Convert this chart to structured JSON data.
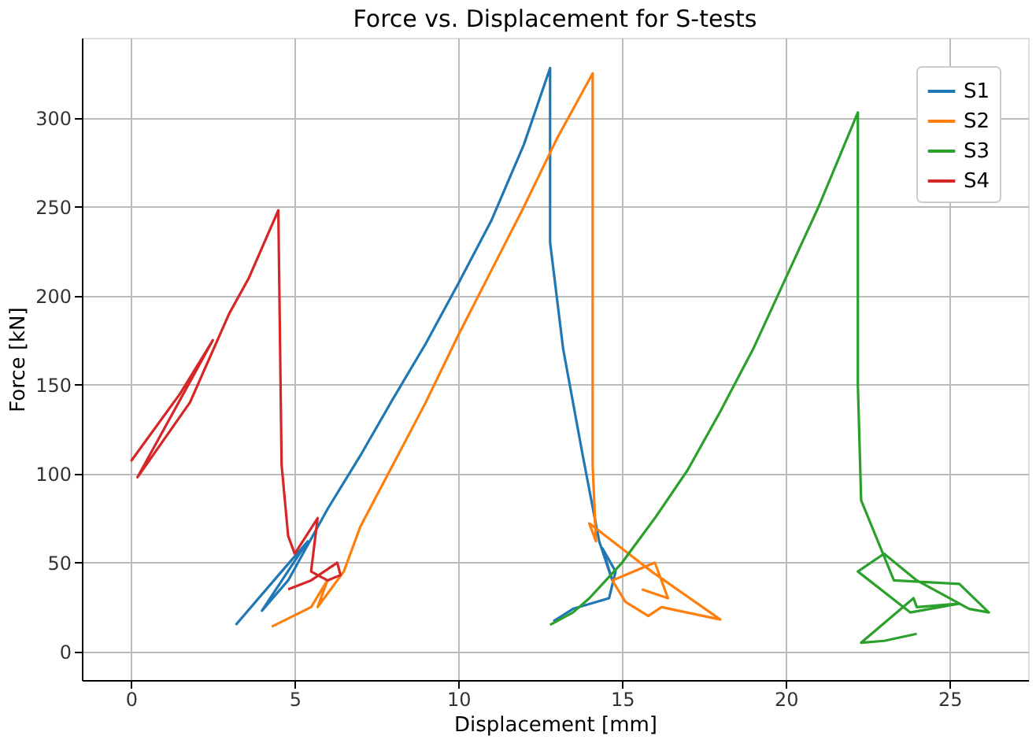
{
  "chart_data": {
    "type": "line",
    "title": "Force vs. Displacement for S-tests",
    "xlabel": "Displacement [mm]",
    "ylabel": "Force [kN]",
    "xlim": [
      -1.5,
      27.4
    ],
    "ylim": [
      -16,
      345
    ],
    "xticks": [
      0,
      5,
      10,
      15,
      20,
      25
    ],
    "yticks": [
      0,
      50,
      100,
      150,
      200,
      250,
      300
    ],
    "grid": true,
    "legend": "top right",
    "marker": "none",
    "line_style": "solid",
    "series": [
      {
        "name": "S1",
        "color": "#1f77b4",
        "x": [
          3.2,
          4.6,
          5.4,
          4.0,
          4.8,
          6.0,
          7.0,
          8.0,
          9.0,
          10.0,
          11.0,
          12.0,
          12.8,
          12.8,
          13.2,
          13.8,
          14.3,
          14.7,
          14.4,
          14.8,
          14.6,
          13.5,
          12.9
        ],
        "values": [
          15,
          45,
          62,
          23,
          40,
          80,
          110,
          142,
          173,
          207,
          242,
          285,
          328,
          230,
          170,
          110,
          62,
          40,
          58,
          45,
          30,
          24,
          17
        ]
      },
      {
        "name": "S2",
        "color": "#ff7f0e",
        "x": [
          4.3,
          5.5,
          6.0,
          5.7,
          6.5,
          7.0,
          8.0,
          9.0,
          10.0,
          11.0,
          12.0,
          13.0,
          14.1,
          14.1,
          14.2,
          14.0,
          15.2,
          15.9,
          18.0,
          16.2,
          15.8,
          15.1,
          14.7,
          16.0,
          16.4,
          15.6
        ],
        "values": [
          14,
          25,
          40,
          25,
          45,
          70,
          105,
          140,
          178,
          214,
          250,
          288,
          325,
          105,
          62,
          72,
          55,
          45,
          18,
          25,
          20,
          28,
          40,
          50,
          30,
          35
        ]
      },
      {
        "name": "S3",
        "color": "#2ca02c",
        "x": [
          12.8,
          13.5,
          14.0,
          15.0,
          16.0,
          17.0,
          18.0,
          19.0,
          20.0,
          21.0,
          22.2,
          22.2,
          22.3,
          23.3,
          25.3,
          26.2,
          25.6,
          24.0,
          23.0,
          22.2,
          23.8,
          25.3,
          24.0,
          23.9,
          22.3,
          23.0,
          24.0
        ],
        "values": [
          15,
          22,
          30,
          50,
          75,
          102,
          135,
          170,
          210,
          250,
          303,
          150,
          85,
          40,
          38,
          22,
          24,
          40,
          55,
          45,
          22,
          27,
          25,
          30,
          5,
          6,
          10
        ]
      },
      {
        "name": "S4",
        "color": "#d62728",
        "x": [
          0.0,
          1.5,
          2.5,
          0.2,
          1.8,
          3.0,
          3.6,
          4.5,
          4.6,
          4.8,
          5.0,
          5.7,
          5.5,
          6.0,
          6.4,
          6.3,
          5.5,
          4.8
        ],
        "values": [
          107,
          145,
          175,
          98,
          140,
          190,
          210,
          248,
          105,
          65,
          55,
          75,
          45,
          40,
          43,
          50,
          40,
          35
        ]
      }
    ]
  }
}
